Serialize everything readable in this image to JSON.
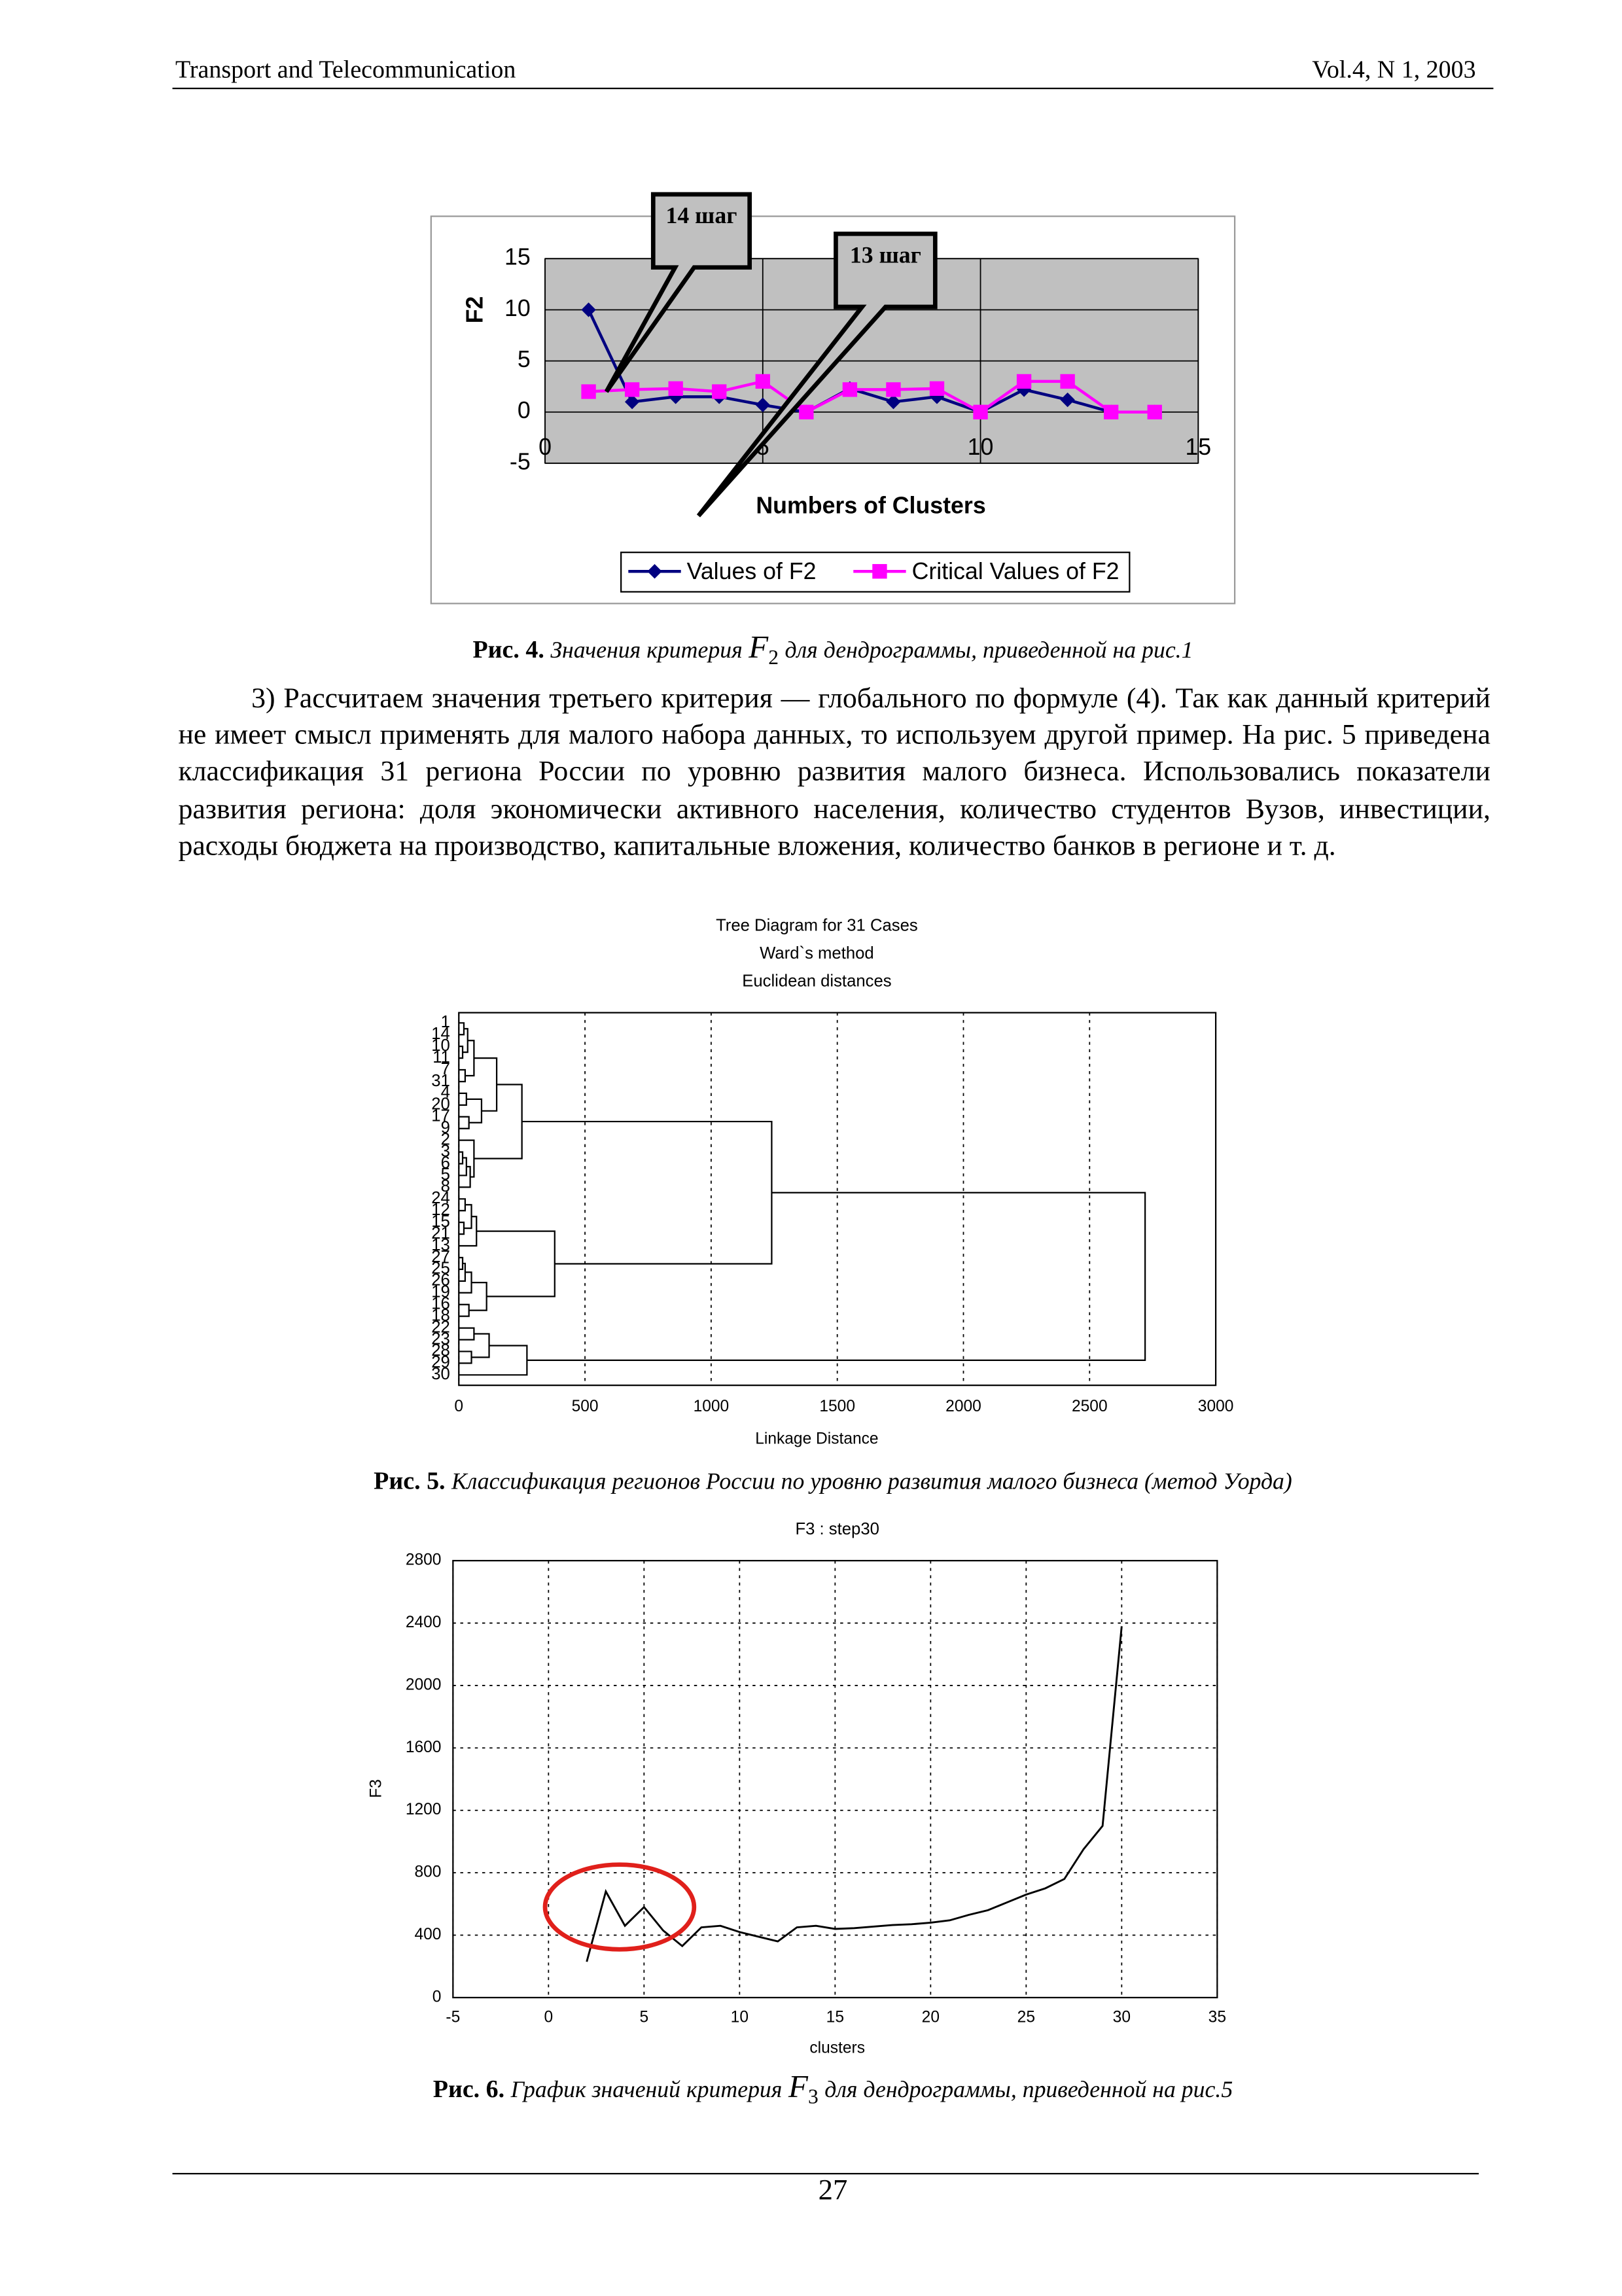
{
  "header": {
    "left": "Transport and Telecommunication",
    "right": "Vol.4, N 1, 2003"
  },
  "chart_data": [
    {
      "type": "line",
      "ylabel": "F2",
      "xlabel": "Numbers of Clusters",
      "annotations": [
        "14 шаг",
        "13 шаг"
      ],
      "x": [
        1,
        2,
        3,
        4,
        5,
        6,
        7,
        8,
        9,
        10,
        11,
        12,
        13,
        14
      ],
      "series": [
        {
          "name": "Values of F2",
          "color": "#000080",
          "marker": "diamond",
          "values": [
            10,
            1,
            1.5,
            1.5,
            0.7,
            0,
            2.3,
            1,
            1.5,
            0,
            2.2,
            1.2,
            0,
            0
          ]
        },
        {
          "name": "Critical Values of F2",
          "color": "#ff00ff",
          "marker": "square",
          "values": [
            2,
            2.2,
            2.3,
            2,
            3,
            0,
            2.2,
            2.2,
            2.3,
            0,
            3,
            3,
            0,
            0
          ]
        }
      ],
      "xlim": [
        0,
        15
      ],
      "xticks": [
        0,
        5,
        10,
        15
      ],
      "ylim": [
        -5,
        15
      ],
      "yticks": [
        -5,
        0,
        5,
        10,
        15
      ],
      "grid": true,
      "plot_background": "#c0c0c0",
      "legend": "bottom"
    },
    {
      "type": "dendrogram",
      "title": [
        "Tree Diagram for 31 Cases",
        "Ward`s method",
        "Euclidean distances"
      ],
      "xlabel": "Linkage Distance",
      "xlim": [
        0,
        3000
      ],
      "xticks": [
        0,
        500,
        1000,
        1500,
        2000,
        2500,
        3000
      ],
      "grid": true,
      "tree": {
        "distance": 2720,
        "children": [
          {
            "distance": 1240,
            "children": [
              {
                "distance": 250,
                "children": [
                  {
                    "distance": 150,
                    "children": [
                      {
                        "distance": 60,
                        "children": [
                          {
                            "distance": 35,
                            "children": [
                              {
                                "distance": 20,
                                "children": [
                                  "1",
                                  "14"
                                ]
                              },
                              {
                                "distance": 15,
                                "children": [
                                  "10",
                                  "11"
                                ]
                              }
                            ]
                          },
                          {
                            "distance": 25,
                            "children": [
                              "7",
                              "31"
                            ]
                          }
                        ]
                      },
                      {
                        "distance": 90,
                        "children": [
                          {
                            "distance": 30,
                            "children": [
                              "4",
                              "20"
                            ]
                          },
                          {
                            "distance": 40,
                            "children": [
                              "17",
                              "9"
                            ]
                          }
                        ]
                      }
                    ]
                  },
                  {
                    "distance": 60,
                    "children": [
                      "2",
                      {
                        "distance": 45,
                        "children": [
                          {
                            "distance": 30,
                            "children": [
                              {
                                "distance": 15,
                                "children": [
                                  "3",
                                  "6"
                                ]
                              },
                              "5"
                            ]
                          },
                          "8"
                        ]
                      }
                    ]
                  }
                ]
              },
              {
                "distance": 380,
                "children": [
                  {
                    "distance": 70,
                    "children": [
                      {
                        "distance": 50,
                        "children": [
                          {
                            "distance": 25,
                            "children": [
                              "24",
                              "12"
                            ]
                          },
                          {
                            "distance": 20,
                            "children": [
                              "15",
                              "21"
                            ]
                          }
                        ]
                      },
                      "13"
                    ]
                  },
                  {
                    "distance": 110,
                    "children": [
                      {
                        "distance": 50,
                        "children": [
                          {
                            "distance": 25,
                            "children": [
                              {
                                "distance": 15,
                                "children": [
                                  "27",
                                  "25"
                                ]
                              },
                              "26"
                            ]
                          },
                          "19"
                        ]
                      },
                      {
                        "distance": 40,
                        "children": [
                          "16",
                          "18"
                        ]
                      }
                    ]
                  }
                ]
              }
            ]
          },
          {
            "distance": 270,
            "children": [
              {
                "distance": 120,
                "children": [
                  {
                    "distance": 60,
                    "children": [
                      "22",
                      "23"
                    ]
                  },
                  {
                    "distance": 50,
                    "children": [
                      "28",
                      "29"
                    ]
                  }
                ]
              },
              "30"
            ]
          }
        ]
      }
    },
    {
      "type": "line",
      "title": "F3 : step30",
      "ylabel": "F3",
      "xlabel": "clusters",
      "x": [
        2,
        3,
        4,
        5,
        6,
        7,
        8,
        9,
        10,
        11,
        12,
        13,
        14,
        15,
        16,
        17,
        18,
        19,
        20,
        21,
        22,
        23,
        24,
        25,
        26,
        27,
        28,
        29,
        30
      ],
      "series": [
        {
          "color": "#000000",
          "values": [
            230,
            680,
            460,
            580,
            430,
            330,
            450,
            460,
            420,
            390,
            360,
            450,
            460,
            440,
            445,
            455,
            465,
            470,
            480,
            495,
            530,
            560,
            610,
            660,
            700,
            760,
            950,
            1100,
            2380
          ]
        }
      ],
      "xlim": [
        -5,
        35
      ],
      "xticks": [
        -5,
        0,
        5,
        10,
        15,
        20,
        25,
        30,
        35
      ],
      "ylim": [
        0,
        2800
      ],
      "yticks": [
        0,
        400,
        800,
        1200,
        1600,
        2000,
        2400,
        2800
      ],
      "grid": true,
      "plot_background": "#ffffff"
    }
  ],
  "figure_captions": [
    {
      "label": "Рис. 4.",
      "text": "Значения критерия",
      "symbol": "F",
      "index": "2",
      "rest": "для дендрограммы, приведенной на рис.1"
    },
    {
      "label": "Рис. 5.",
      "text": "Классификация регионов России по уровню развития малого бизнеса (метод Уорда)"
    },
    {
      "label": "Рис. 6.",
      "text": "График значений критерия",
      "symbol": "F",
      "index": "3",
      "rest": "для дендрограммы, приведенной на рис.5"
    }
  ],
  "body": "3) Рассчитаем значения третьего критерия — глобального по формуле (4). Так как данный критерий не имеет смысл применять для малого набора данных, то используем другой пример. На рис. 5 приведена классификация 31 региона России по уровню развития малого бизнеса. Использовались показатели развития региона: доля экономически активного населения, количество студентов Вузов, инвестиции, расходы бюджета на производство, капитальные вложения, количество банков в регионе и т. д.",
  "page_number": "27"
}
